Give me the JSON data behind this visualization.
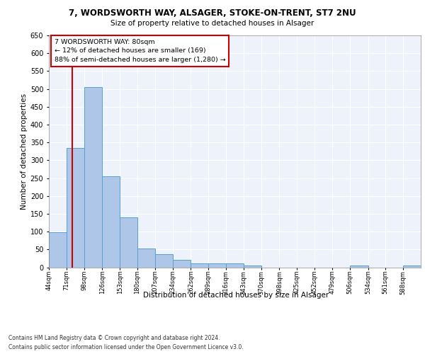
{
  "title1": "7, WORDSWORTH WAY, ALSAGER, STOKE-ON-TRENT, ST7 2NU",
  "title2": "Size of property relative to detached houses in Alsager",
  "xlabel": "Distribution of detached houses by size in Alsager",
  "ylabel": "Number of detached properties",
  "bar_edges": [
    44,
    71,
    98,
    126,
    153,
    180,
    207,
    234,
    262,
    289,
    316,
    343,
    370,
    398,
    425,
    452,
    479,
    506,
    534,
    561,
    588,
    615
  ],
  "bar_heights": [
    98,
    335,
    505,
    255,
    140,
    53,
    37,
    20,
    10,
    10,
    10,
    5,
    0,
    0,
    0,
    0,
    0,
    5,
    0,
    0,
    5
  ],
  "bar_color": "#aec6e8",
  "bar_edge_color": "#5a9fd4",
  "property_size": 80,
  "vline_color": "#cc0000",
  "annotation_text": "7 WORDSWORTH WAY: 80sqm\n← 12% of detached houses are smaller (169)\n88% of semi-detached houses are larger (1,280) →",
  "annotation_box_color": "#cc0000",
  "ylim": [
    0,
    650
  ],
  "yticks": [
    0,
    50,
    100,
    150,
    200,
    250,
    300,
    350,
    400,
    450,
    500,
    550,
    600,
    650
  ],
  "background_color": "#eef2fb",
  "grid_color": "#ffffff",
  "footer1": "Contains HM Land Registry data © Crown copyright and database right 2024.",
  "footer2": "Contains public sector information licensed under the Open Government Licence v3.0."
}
